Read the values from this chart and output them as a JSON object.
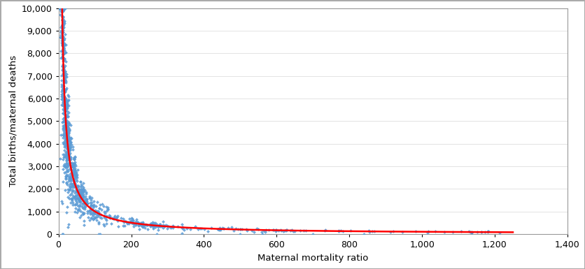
{
  "xlabel": "Maternal mortality ratio",
  "ylabel": "Total births/maternal deaths",
  "xlim": [
    0,
    1400
  ],
  "ylim": [
    0,
    10000
  ],
  "xticks": [
    0,
    200,
    400,
    600,
    800,
    1000,
    1200,
    1400
  ],
  "yticks": [
    0,
    1000,
    2000,
    3000,
    4000,
    5000,
    6000,
    7000,
    8000,
    9000,
    10000
  ],
  "dot_color": "#5B9BD5",
  "line_color": "#FF0000",
  "background_color": "#FFFFFF",
  "border_color": "#AAAAAA",
  "dot_size": 6,
  "line_width": 1.8,
  "curve_constant": 100000,
  "scatter_x_start": 2,
  "scatter_x_end": 1250,
  "figsize": [
    8.36,
    3.85
  ],
  "dpi": 100
}
